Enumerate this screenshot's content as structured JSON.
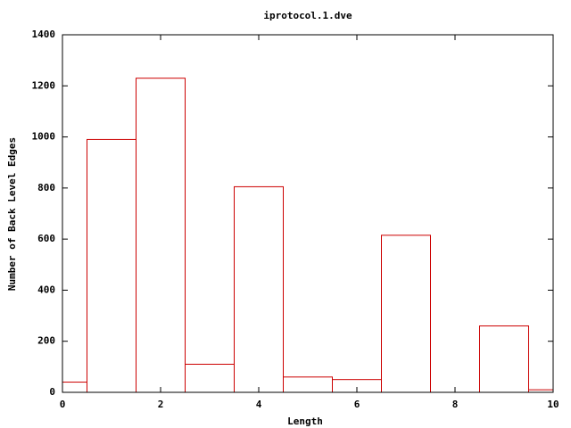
{
  "chart_data": {
    "type": "bar",
    "title": "iprotocol.1.dve",
    "x_label": "Length",
    "y_label": "Number of Back Level Edges",
    "x": [
      0,
      1,
      2,
      3,
      4,
      5,
      6,
      7,
      8,
      9,
      10
    ],
    "values": [
      40,
      990,
      1230,
      110,
      805,
      60,
      50,
      615,
      0,
      260,
      10
    ],
    "color": "#cc0000",
    "xlim": [
      0,
      10
    ],
    "xticks": [
      0,
      2,
      4,
      6,
      8,
      10
    ],
    "ylim": [
      0,
      1400
    ],
    "yticks": [
      0,
      200,
      400,
      600,
      800,
      1000,
      1200,
      1400
    ],
    "grid": false
  }
}
